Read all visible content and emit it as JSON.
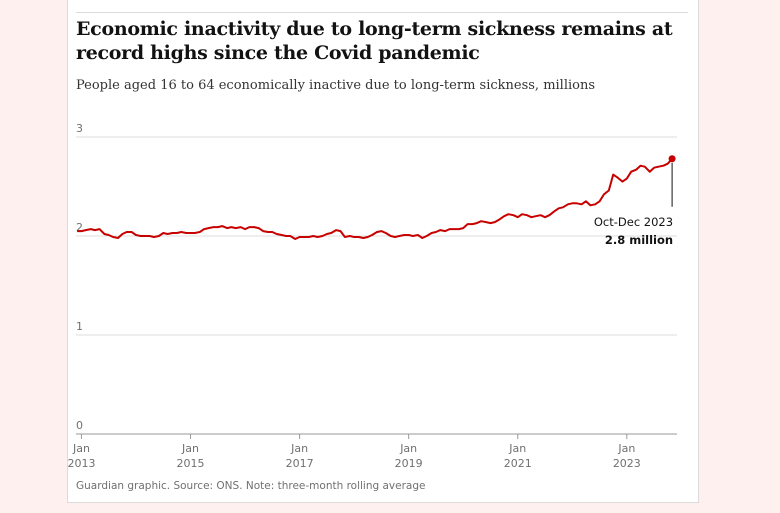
{
  "header": {
    "title": "Economic inactivity due to long-term sickness remains at record highs since the Covid pandemic",
    "subtitle": "People aged 16 to 64 economically inactive due to long-term sickness, millions"
  },
  "footer": {
    "source": "Guardian graphic. Source: ONS. Note: three-month rolling average"
  },
  "annotation": {
    "period": "Oct-Dec 2023",
    "value": "2.8 million"
  },
  "colors": {
    "line": "#c70000",
    "grid": "#dcdcdc",
    "background": "#fdf0ee"
  },
  "chart_data": {
    "type": "line",
    "title": "Economic inactivity due to long-term sickness remains at record highs since the Covid pandemic",
    "subtitle": "People aged 16 to 64 economically inactive due to long-term sickness, millions",
    "xlabel": "",
    "ylabel": "",
    "ylim": [
      0,
      3
    ],
    "yticks": [
      "0",
      "1",
      "2",
      "3"
    ],
    "xlim": [
      2012.9,
      2023.92
    ],
    "xticks": [
      {
        "x": 2013,
        "top": "Jan",
        "bottom": "2013"
      },
      {
        "x": 2015,
        "top": "Jan",
        "bottom": "2015"
      },
      {
        "x": 2017,
        "top": "Jan",
        "bottom": "2017"
      },
      {
        "x": 2019,
        "top": "Jan",
        "bottom": "2019"
      },
      {
        "x": 2021,
        "top": "Jan",
        "bottom": "2021"
      },
      {
        "x": 2023,
        "top": "Jan",
        "bottom": "2023"
      }
    ],
    "grid": true,
    "series": [
      {
        "points": [
          [
            2012.92,
            2.05
          ],
          [
            2013.0,
            2.05
          ],
          [
            2013.08,
            2.06
          ],
          [
            2013.17,
            2.07
          ],
          [
            2013.25,
            2.06
          ],
          [
            2013.33,
            2.07
          ],
          [
            2013.42,
            2.02
          ],
          [
            2013.5,
            2.01
          ],
          [
            2013.58,
            1.99
          ],
          [
            2013.67,
            1.98
          ],
          [
            2013.75,
            2.02
          ],
          [
            2013.83,
            2.04
          ],
          [
            2013.92,
            2.04
          ],
          [
            2014.0,
            2.01
          ],
          [
            2014.08,
            2.0
          ],
          [
            2014.17,
            2.0
          ],
          [
            2014.25,
            2.0
          ],
          [
            2014.33,
            1.99
          ],
          [
            2014.42,
            2.0
          ],
          [
            2014.5,
            2.03
          ],
          [
            2014.58,
            2.02
          ],
          [
            2014.67,
            2.03
          ],
          [
            2014.75,
            2.03
          ],
          [
            2014.83,
            2.04
          ],
          [
            2014.92,
            2.03
          ],
          [
            2015.0,
            2.03
          ],
          [
            2015.08,
            2.03
          ],
          [
            2015.17,
            2.04
          ],
          [
            2015.25,
            2.07
          ],
          [
            2015.33,
            2.08
          ],
          [
            2015.42,
            2.09
          ],
          [
            2015.5,
            2.09
          ],
          [
            2015.58,
            2.1
          ],
          [
            2015.67,
            2.08
          ],
          [
            2015.75,
            2.09
          ],
          [
            2015.83,
            2.08
          ],
          [
            2015.92,
            2.09
          ],
          [
            2016.0,
            2.07
          ],
          [
            2016.08,
            2.09
          ],
          [
            2016.17,
            2.09
          ],
          [
            2016.25,
            2.08
          ],
          [
            2016.33,
            2.05
          ],
          [
            2016.42,
            2.04
          ],
          [
            2016.5,
            2.04
          ],
          [
            2016.58,
            2.02
          ],
          [
            2016.67,
            2.01
          ],
          [
            2016.75,
            2.0
          ],
          [
            2016.83,
            2.0
          ],
          [
            2016.92,
            1.97
          ],
          [
            2017.0,
            1.99
          ],
          [
            2017.08,
            1.99
          ],
          [
            2017.17,
            1.99
          ],
          [
            2017.25,
            2.0
          ],
          [
            2017.33,
            1.99
          ],
          [
            2017.42,
            2.0
          ],
          [
            2017.5,
            2.02
          ],
          [
            2017.58,
            2.03
          ],
          [
            2017.67,
            2.06
          ],
          [
            2017.75,
            2.05
          ],
          [
            2017.83,
            1.99
          ],
          [
            2017.92,
            2.0
          ],
          [
            2018.0,
            1.99
          ],
          [
            2018.08,
            1.99
          ],
          [
            2018.17,
            1.98
          ],
          [
            2018.25,
            1.99
          ],
          [
            2018.33,
            2.01
          ],
          [
            2018.42,
            2.04
          ],
          [
            2018.5,
            2.05
          ],
          [
            2018.58,
            2.03
          ],
          [
            2018.67,
            2.0
          ],
          [
            2018.75,
            1.99
          ],
          [
            2018.83,
            2.0
          ],
          [
            2018.92,
            2.01
          ],
          [
            2019.0,
            2.01
          ],
          [
            2019.08,
            2.0
          ],
          [
            2019.17,
            2.01
          ],
          [
            2019.25,
            1.98
          ],
          [
            2019.33,
            2.0
          ],
          [
            2019.42,
            2.03
          ],
          [
            2019.5,
            2.04
          ],
          [
            2019.58,
            2.06
          ],
          [
            2019.67,
            2.05
          ],
          [
            2019.75,
            2.07
          ],
          [
            2019.83,
            2.07
          ],
          [
            2019.92,
            2.07
          ],
          [
            2020.0,
            2.08
          ],
          [
            2020.08,
            2.12
          ],
          [
            2020.17,
            2.12
          ],
          [
            2020.25,
            2.13
          ],
          [
            2020.33,
            2.15
          ],
          [
            2020.42,
            2.14
          ],
          [
            2020.5,
            2.13
          ],
          [
            2020.58,
            2.14
          ],
          [
            2020.67,
            2.17
          ],
          [
            2020.75,
            2.2
          ],
          [
            2020.83,
            2.22
          ],
          [
            2020.92,
            2.21
          ],
          [
            2021.0,
            2.19
          ],
          [
            2021.08,
            2.22
          ],
          [
            2021.17,
            2.21
          ],
          [
            2021.25,
            2.19
          ],
          [
            2021.33,
            2.2
          ],
          [
            2021.42,
            2.21
          ],
          [
            2021.5,
            2.19
          ],
          [
            2021.58,
            2.21
          ],
          [
            2021.67,
            2.25
          ],
          [
            2021.75,
            2.28
          ],
          [
            2021.83,
            2.29
          ],
          [
            2021.92,
            2.32
          ],
          [
            2022.0,
            2.33
          ],
          [
            2022.08,
            2.33
          ],
          [
            2022.17,
            2.32
          ],
          [
            2022.25,
            2.35
          ],
          [
            2022.33,
            2.31
          ],
          [
            2022.42,
            2.32
          ],
          [
            2022.5,
            2.35
          ],
          [
            2022.58,
            2.42
          ],
          [
            2022.67,
            2.46
          ],
          [
            2022.75,
            2.62
          ],
          [
            2022.83,
            2.59
          ],
          [
            2022.92,
            2.55
          ],
          [
            2023.0,
            2.58
          ],
          [
            2023.08,
            2.65
          ],
          [
            2023.17,
            2.67
          ],
          [
            2023.25,
            2.71
          ],
          [
            2023.33,
            2.7
          ],
          [
            2023.42,
            2.65
          ],
          [
            2023.5,
            2.69
          ],
          [
            2023.58,
            2.7
          ],
          [
            2023.67,
            2.71
          ],
          [
            2023.75,
            2.73
          ],
          [
            2023.83,
            2.78
          ]
        ]
      }
    ]
  }
}
